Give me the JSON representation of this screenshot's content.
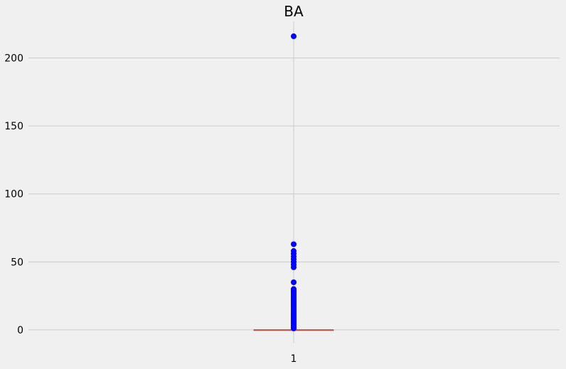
{
  "chart_data": {
    "type": "box",
    "title": "BA",
    "xlabel": "",
    "ylabel": "",
    "categories": [
      "1"
    ],
    "ylim": [
      -10,
      227
    ],
    "y_ticks": [
      0,
      50,
      100,
      150,
      200
    ],
    "grid": true,
    "box": {
      "category": "1",
      "whisker_low": 0,
      "q1": 0,
      "median": 0,
      "q3": 0,
      "whisker_high": 0
    },
    "outliers": [
      216,
      63,
      58,
      56,
      54,
      52,
      50,
      48,
      46,
      35,
      30,
      29,
      28,
      27,
      26,
      25,
      24,
      23,
      22,
      21,
      20,
      19,
      18,
      17,
      16,
      15,
      14,
      13,
      12,
      11,
      10,
      9,
      8,
      7,
      6,
      5,
      4,
      3,
      2,
      1
    ],
    "colors": {
      "background": "#f0f0f0",
      "grid": "#cbcbcb",
      "outlier": "#0000ff",
      "median": "#e5533d"
    }
  }
}
